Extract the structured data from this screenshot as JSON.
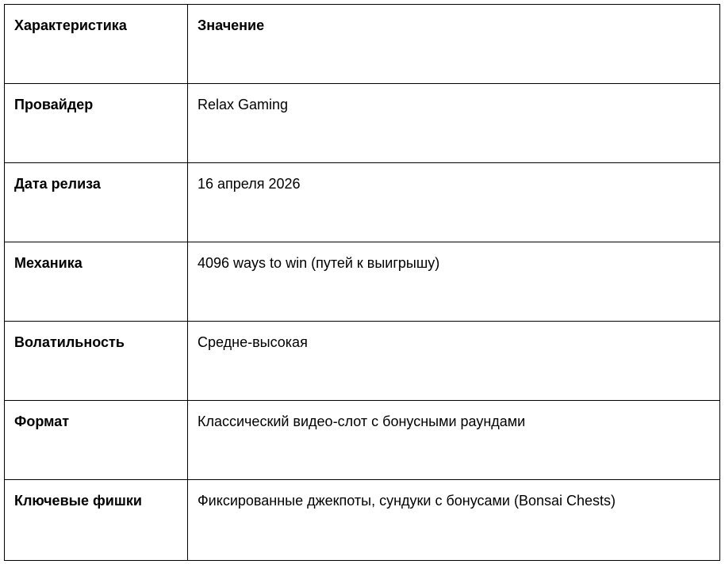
{
  "table": {
    "headers": [
      "Характеристика",
      "Значение"
    ],
    "rows": [
      {
        "key": "Провайдер",
        "value": "Relax Gaming"
      },
      {
        "key": "Дата релиза",
        "value": "16 апреля 2026"
      },
      {
        "key": "Механика",
        "value": "4096 ways to win (путей к выигрышу)"
      },
      {
        "key": "Волатильность",
        "value": "Средне-высокая"
      },
      {
        "key": "Формат",
        "value": "Классический видео-слот с бонусными раундами"
      },
      {
        "key": "Ключевые фишки",
        "value": "Фиксированные джекпоты, сундуки с бонусами (Bonsai Chests)"
      }
    ]
  }
}
